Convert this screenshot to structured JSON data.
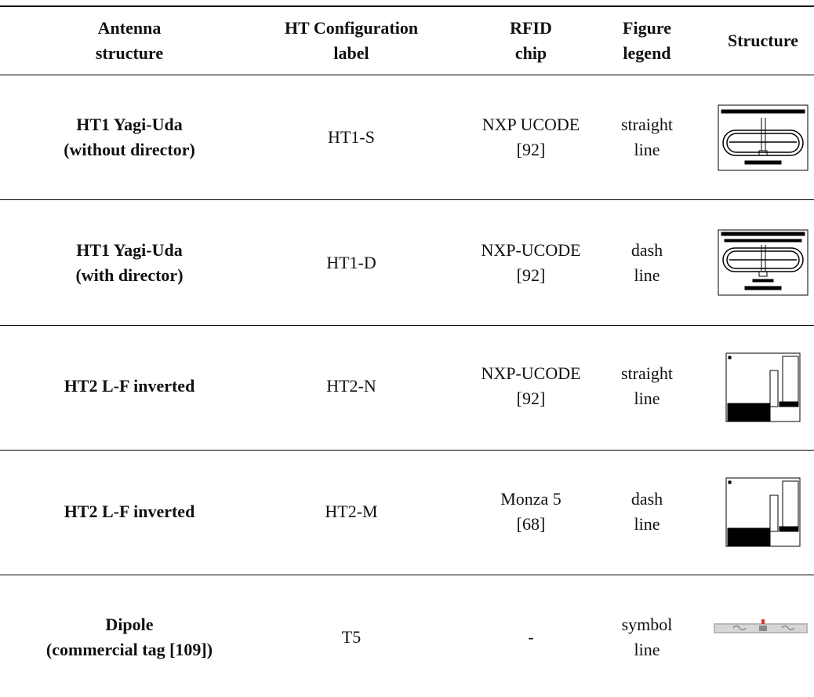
{
  "table": {
    "header": [
      [
        "Antenna",
        "structure"
      ],
      [
        "HT Configuration",
        "label"
      ],
      [
        "RFID",
        "chip"
      ],
      [
        "Figure",
        "legend"
      ],
      [
        "Structure"
      ]
    ],
    "rows": [
      [
        [
          "HT1 Yagi-Uda",
          "(without director)"
        ],
        [
          "HT1-S"
        ],
        [
          "NXP UCODE",
          "[92]"
        ],
        [
          "straight",
          "line"
        ]
      ],
      [
        [
          "HT1 Yagi-Uda",
          "(with director)"
        ],
        [
          "HT1-D"
        ],
        [
          "NXP-UCODE",
          "[92]"
        ],
        [
          "dash",
          "line"
        ]
      ],
      [
        [
          "HT2 L-F inverted"
        ],
        [
          "HT2-N"
        ],
        [
          "NXP-UCODE",
          "[92]"
        ],
        [
          "straight",
          "line"
        ]
      ],
      [
        [
          "HT2 L-F inverted"
        ],
        [
          "HT2-M"
        ],
        [
          "Monza 5",
          "[68]"
        ],
        [
          "dash",
          "line"
        ]
      ],
      [
        [
          "Dipole",
          "(commercial tag [109])"
        ],
        [
          "T5"
        ],
        [
          "-"
        ],
        [
          "symbol",
          "line"
        ]
      ]
    ]
  }
}
